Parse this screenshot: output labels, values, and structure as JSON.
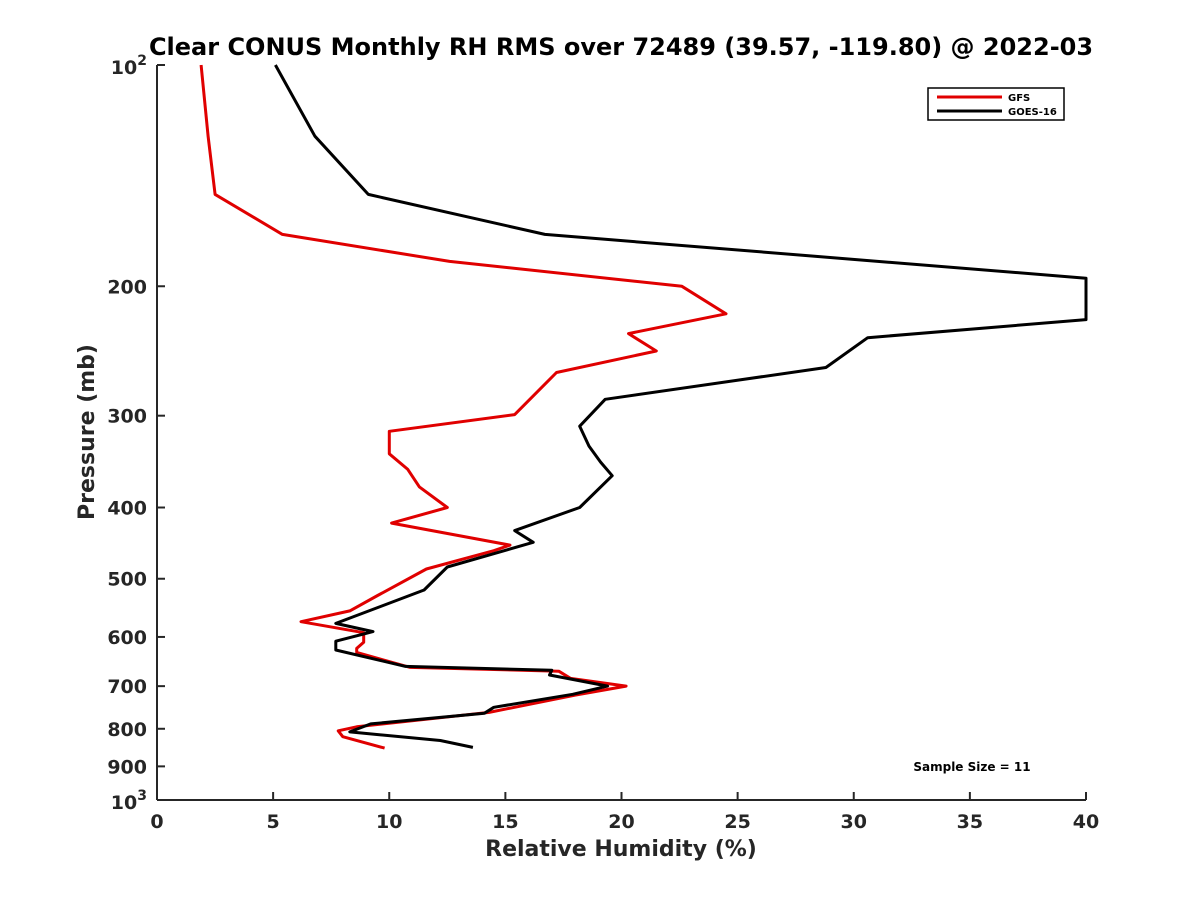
{
  "chart_data": {
    "type": "line",
    "title": "Clear CONUS Monthly RH RMS over 72489 (39.57, -119.80) @ 2022-03",
    "xlabel": "Relative Humidity (%)",
    "ylabel": "Pressure (mb)",
    "xlim": [
      0,
      40
    ],
    "ylim": [
      100,
      1000
    ],
    "yscale": "log",
    "y_reversed": true,
    "x_ticks": [
      0,
      5,
      10,
      15,
      20,
      25,
      30,
      35,
      40
    ],
    "x_tick_labels": [
      "0",
      "5",
      "10",
      "15",
      "20",
      "25",
      "30",
      "35",
      "40"
    ],
    "y_ticks": [
      200,
      300,
      400,
      500,
      600,
      700,
      800,
      900
    ],
    "y_tick_labels": [
      "200",
      "300",
      "400",
      "500",
      "600",
      "700",
      "800",
      "900"
    ],
    "y_end_labels": {
      "top": {
        "base": "10",
        "exp": "2"
      },
      "bottom": {
        "base": "10",
        "exp": "3"
      }
    },
    "grid": false,
    "legend": {
      "position": "top-right"
    },
    "annotation": "Sample Size = 11",
    "series": [
      {
        "name": "GFS",
        "color": "#e00000",
        "points": [
          [
            1.9,
            100
          ],
          [
            2.2,
            125
          ],
          [
            2.5,
            150
          ],
          [
            5.4,
            170
          ],
          [
            12.6,
            185
          ],
          [
            22.6,
            200
          ],
          [
            24.5,
            218
          ],
          [
            20.3,
            232
          ],
          [
            21.5,
            245
          ],
          [
            17.2,
            262
          ],
          [
            15.4,
            299
          ],
          [
            10.0,
            315
          ],
          [
            10.0,
            338
          ],
          [
            10.8,
            355
          ],
          [
            11.3,
            375
          ],
          [
            12.5,
            400
          ],
          [
            10.1,
            420
          ],
          [
            15.2,
            450
          ],
          [
            14.5,
            458
          ],
          [
            11.6,
            485
          ],
          [
            9.5,
            527
          ],
          [
            8.3,
            553
          ],
          [
            6.2,
            572
          ],
          [
            8.9,
            592
          ],
          [
            8.9,
            610
          ],
          [
            8.6,
            622
          ],
          [
            8.6,
            630
          ],
          [
            10.9,
            660
          ],
          [
            17.3,
            668
          ],
          [
            17.8,
            683
          ],
          [
            20.2,
            700
          ],
          [
            18.0,
            720
          ],
          [
            14.3,
            760
          ],
          [
            8.6,
            795
          ],
          [
            7.8,
            805
          ],
          [
            8.0,
            820
          ],
          [
            9.8,
            850
          ]
        ]
      },
      {
        "name": "GOES-16",
        "color": "#000000",
        "points": [
          [
            5.1,
            100
          ],
          [
            6.8,
            125
          ],
          [
            9.1,
            150
          ],
          [
            16.7,
            170
          ],
          [
            40.0,
            195
          ],
          [
            40.0,
            222
          ],
          [
            30.6,
            235
          ],
          [
            28.8,
            258
          ],
          [
            19.3,
            285
          ],
          [
            18.2,
            310
          ],
          [
            18.6,
            330
          ],
          [
            19.1,
            347
          ],
          [
            19.6,
            362
          ],
          [
            18.2,
            400
          ],
          [
            15.4,
            430
          ],
          [
            16.2,
            446
          ],
          [
            12.5,
            482
          ],
          [
            11.5,
            518
          ],
          [
            7.7,
            575
          ],
          [
            9.3,
            590
          ],
          [
            7.7,
            608
          ],
          [
            7.7,
            625
          ],
          [
            10.7,
            658
          ],
          [
            17.0,
            666
          ],
          [
            16.9,
            676
          ],
          [
            19.4,
            700
          ],
          [
            17.9,
            718
          ],
          [
            14.5,
            748
          ],
          [
            14.1,
            762
          ],
          [
            9.2,
            788
          ],
          [
            8.3,
            808
          ],
          [
            12.2,
            830
          ],
          [
            13.6,
            848
          ]
        ]
      }
    ]
  }
}
